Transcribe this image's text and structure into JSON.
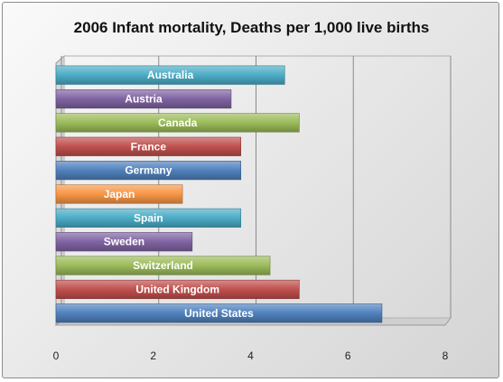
{
  "chart_data": {
    "type": "bar",
    "orientation": "horizontal",
    "title": "2006 Infant mortality, Deaths per 1,000 live births",
    "xlabel": "",
    "ylabel": "",
    "categories": [
      "Australia",
      "Austria",
      "Canada",
      "France",
      "Germany",
      "Japan",
      "Spain",
      "Sweden",
      "Switzerland",
      "United Kingdom",
      "United States"
    ],
    "values": [
      4.7,
      3.6,
      5.0,
      3.8,
      3.8,
      2.6,
      3.8,
      2.8,
      4.4,
      5.0,
      6.7
    ],
    "xlim": [
      0,
      8
    ],
    "x_ticks": [
      "0",
      "2",
      "4",
      "6",
      "8"
    ],
    "grid": true,
    "legend": "none",
    "colors": [
      "#4bacc6",
      "#8064a2",
      "#9bbb59",
      "#c0504d",
      "#4f81bd",
      "#f79646",
      "#4bacc6",
      "#8064a2",
      "#9bbb59",
      "#c0504d",
      "#4f81bd"
    ]
  }
}
